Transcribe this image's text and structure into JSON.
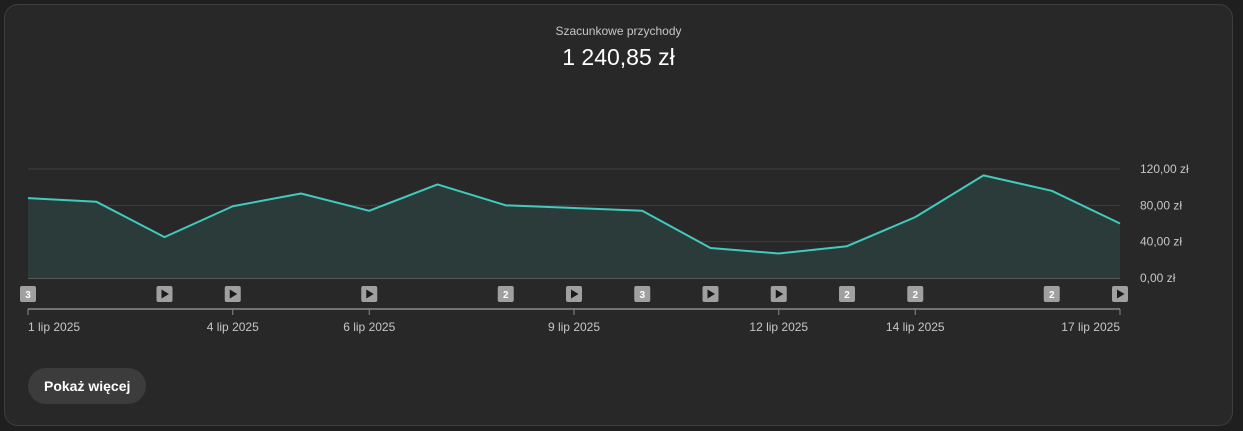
{
  "metric": {
    "label": "Szacunkowe przychody",
    "value": "1 240,85 zł"
  },
  "show_more_label": "Pokaż więcej",
  "colors": {
    "line": "#3fcbbd",
    "area": "#2b3b39",
    "grid": "#3e3e3e",
    "axis": "#8a8a8a",
    "tick_text": "#c6c6c6",
    "marker_bg": "#a0a0a0"
  },
  "chart_data": {
    "type": "area",
    "x": [
      "1 lip 2025",
      "2 lip 2025",
      "3 lip 2025",
      "4 lip 2025",
      "5 lip 2025",
      "6 lip 2025",
      "7 lip 2025",
      "8 lip 2025",
      "9 lip 2025",
      "10 lip 2025",
      "11 lip 2025",
      "12 lip 2025",
      "13 lip 2025",
      "14 lip 2025",
      "15 lip 2025",
      "16 lip 2025",
      "17 lip 2025"
    ],
    "values": [
      88,
      84,
      45,
      79,
      93,
      74,
      103,
      80,
      77,
      74,
      33,
      27,
      35,
      67,
      113,
      96,
      60
    ],
    "ylim": [
      0,
      120
    ],
    "y_ticks": [
      {
        "value": 0,
        "label": "0,00 zł"
      },
      {
        "value": 40,
        "label": "40,00 zł"
      },
      {
        "value": 80,
        "label": "80,00 zł"
      },
      {
        "value": 120,
        "label": "120,00 zł"
      }
    ],
    "x_tick_labels": [
      {
        "index": 0,
        "label": "1 lip 2025"
      },
      {
        "index": 3,
        "label": "4 lip 2025"
      },
      {
        "index": 5,
        "label": "6 lip 2025"
      },
      {
        "index": 8,
        "label": "9 lip 2025"
      },
      {
        "index": 11,
        "label": "12 lip 2025"
      },
      {
        "index": 13,
        "label": "14 lip 2025"
      },
      {
        "index": 16,
        "label": "17 lip 2025"
      }
    ],
    "markers": [
      {
        "index": 0,
        "kind": "count",
        "label": "3"
      },
      {
        "index": 2,
        "kind": "video"
      },
      {
        "index": 3,
        "kind": "video"
      },
      {
        "index": 5,
        "kind": "video"
      },
      {
        "index": 7,
        "kind": "count",
        "label": "2"
      },
      {
        "index": 8,
        "kind": "video"
      },
      {
        "index": 9,
        "kind": "count",
        "label": "3"
      },
      {
        "index": 10,
        "kind": "video"
      },
      {
        "index": 11,
        "kind": "video"
      },
      {
        "index": 12,
        "kind": "count",
        "label": "2"
      },
      {
        "index": 13,
        "kind": "count",
        "label": "2"
      },
      {
        "index": 15,
        "kind": "count",
        "label": "2"
      },
      {
        "index": 16,
        "kind": "video"
      }
    ],
    "grid": true,
    "title": "",
    "xlabel": "",
    "ylabel": ""
  }
}
